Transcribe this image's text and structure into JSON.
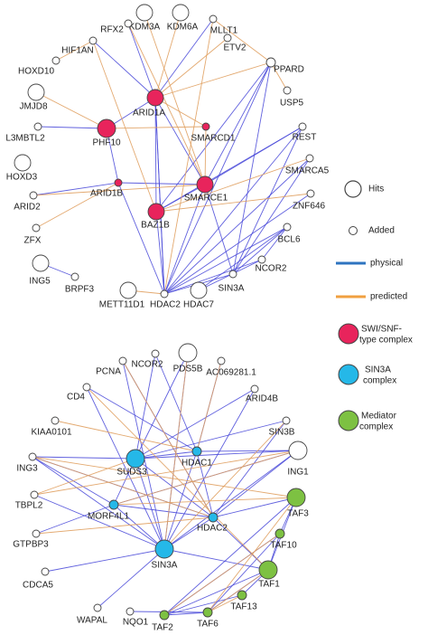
{
  "top_network": {
    "nodes": [
      "KDM3A",
      "KDM6A",
      "RFX2",
      "MLLT1",
      "HIF1AN",
      "ETV2",
      "PPARD",
      "HOXD10",
      "USP5",
      "ARID1A",
      "JMJD8",
      "L3MBTL2",
      "PHF10",
      "SMARCD1",
      "REST",
      "HOXD3",
      "SMARCA5",
      "ARID1B",
      "SMARCE1",
      "ARID2",
      "ZNF646",
      "BAZ1B",
      "ZFX",
      "BCL6",
      "ING5",
      "BRPF3",
      "NCOR2",
      "SIN3A",
      "METT11D1",
      "HDAC2",
      "HDAC7"
    ]
  },
  "bottom_network": {
    "nodes": [
      "PDS5B",
      "NCOR2",
      "PCNA",
      "AC069281.1",
      "CD4",
      "ARID4B",
      "KIAA0101",
      "SIN3B",
      "SUDS3",
      "HDAC1",
      "ING1",
      "ING3",
      "TBPL2",
      "TAF3",
      "MORF4L1",
      "HDAC2",
      "GTPBP3",
      "TAF10",
      "SIN3A",
      "TAF1",
      "CDCA5",
      "TAF13",
      "WAPAL",
      "NQO1",
      "TAF2",
      "TAF6"
    ]
  },
  "legend": {
    "items": [
      [
        "Hits"
      ],
      [
        "Added"
      ],
      [
        "physical"
      ],
      [
        "predicted"
      ],
      [
        "SWI/SNF-",
        "type complex"
      ],
      [
        "SIN3A",
        "complex"
      ],
      [
        "Mediator",
        "complex"
      ]
    ]
  }
}
